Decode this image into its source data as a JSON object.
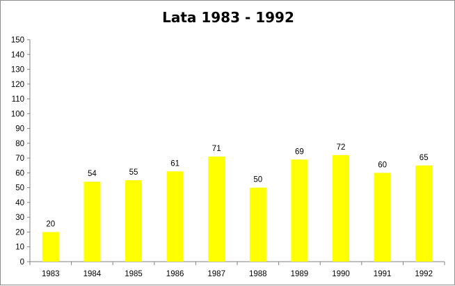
{
  "chart_data": {
    "type": "bar",
    "title": "Lata 1983 - 1992",
    "categories": [
      "1983",
      "1984",
      "1985",
      "1986",
      "1987",
      "1988",
      "1989",
      "1990",
      "1991",
      "1992"
    ],
    "values": [
      20,
      54,
      55,
      61,
      71,
      50,
      69,
      72,
      60,
      65
    ],
    "ylim": [
      0,
      150
    ],
    "yticks": [
      0,
      10,
      20,
      30,
      40,
      50,
      60,
      70,
      80,
      90,
      100,
      110,
      120,
      130,
      140,
      150
    ],
    "grid": false,
    "legend": "none",
    "xlabel": "",
    "ylabel": ""
  },
  "colors": {
    "bar": "#ffff00",
    "axis": "#808080",
    "frame": "#8c8c8c"
  }
}
